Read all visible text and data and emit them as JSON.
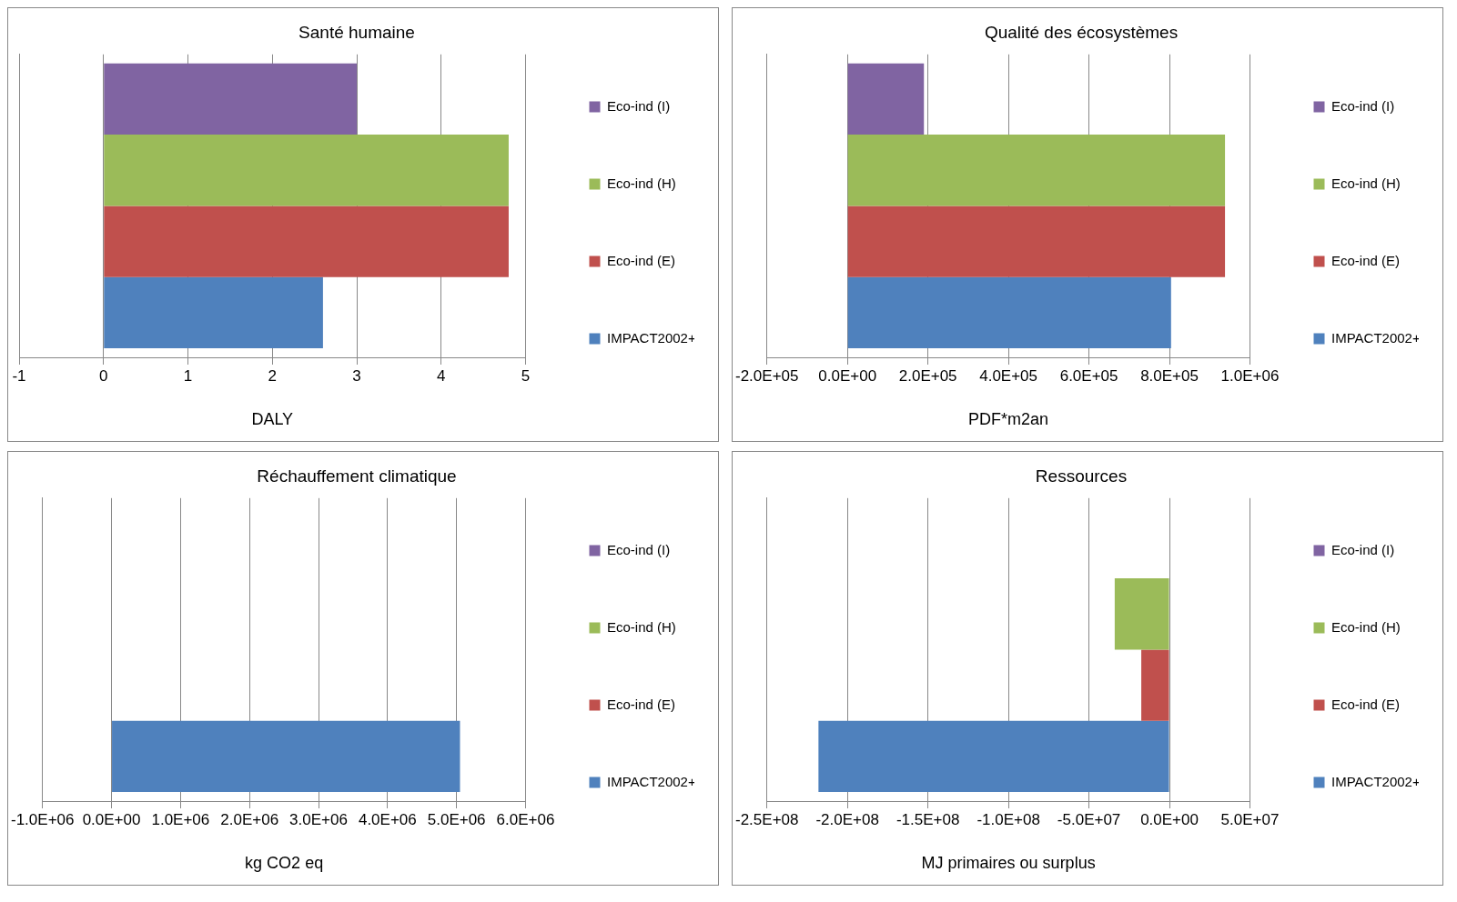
{
  "chart_data": [
    {
      "type": "bar",
      "orientation": "horizontal",
      "title": "Santé humaine",
      "xlabel": "DALY",
      "categories": [
        null
      ],
      "xlim": [
        -1,
        5
      ],
      "xticks": [
        -1,
        0,
        1,
        2,
        3,
        4,
        5
      ],
      "grid": "x",
      "legend": "right",
      "tick_labels": "x",
      "series": [
        {
          "name": "Eco-ind (I)",
          "color": "#8064a2",
          "values": [
            3.0
          ]
        },
        {
          "name": "Eco-ind (H)",
          "color": "#9bbb59",
          "values": [
            4.8
          ]
        },
        {
          "name": "Eco-ind (E)",
          "color": "#c0504d",
          "values": [
            4.8
          ]
        },
        {
          "name": "IMPACT2002+",
          "color": "#4f81bd",
          "values": [
            2.6
          ]
        }
      ]
    },
    {
      "type": "bar",
      "orientation": "horizontal",
      "title": "Qualité des écosystèmes",
      "xlabel": "PDF*m2an",
      "categories": [
        null
      ],
      "xlim": [
        -200000,
        1000000
      ],
      "xticks": [
        {
          "value": -200000,
          "label": "-2.0E+05"
        },
        {
          "value": 0,
          "label": "0.0E+00"
        },
        {
          "value": 200000,
          "label": "2.0E+05"
        },
        {
          "value": 400000,
          "label": "4.0E+05"
        },
        {
          "value": 600000,
          "label": "6.0E+05"
        },
        {
          "value": 800000,
          "label": "8.0E+05"
        },
        {
          "value": 1000000,
          "label": "1.0E+06"
        }
      ],
      "grid": "x",
      "legend": "right",
      "tick_labels": "x",
      "series": [
        {
          "name": "Eco-ind (I)",
          "color": "#8064a2",
          "values": [
            190000
          ]
        },
        {
          "name": "Eco-ind (H)",
          "color": "#9bbb59",
          "values": [
            938000
          ]
        },
        {
          "name": "Eco-ind (E)",
          "color": "#c0504d",
          "values": [
            938000
          ]
        },
        {
          "name": "IMPACT2002+",
          "color": "#4f81bd",
          "values": [
            804000
          ]
        }
      ]
    },
    {
      "type": "bar",
      "orientation": "horizontal",
      "title": "Réchauffement climatique",
      "xlabel": "kg CO2 eq",
      "categories": [
        null
      ],
      "xlim": [
        -1000000,
        6000000
      ],
      "xticks": [
        {
          "value": -1000000,
          "label": "-1.0E+06"
        },
        {
          "value": 0,
          "label": "0.0E+00"
        },
        {
          "value": 1000000,
          "label": "1.0E+06"
        },
        {
          "value": 2000000,
          "label": "2.0E+06"
        },
        {
          "value": 3000000,
          "label": "3.0E+06"
        },
        {
          "value": 4000000,
          "label": "4.0E+06"
        },
        {
          "value": 5000000,
          "label": "5.0E+06"
        },
        {
          "value": 6000000,
          "label": "6.0E+06"
        }
      ],
      "grid": "x",
      "legend": "right",
      "tick_labels": "x",
      "series": [
        {
          "name": "Eco-ind (I)",
          "color": "#8064a2",
          "values": [
            0
          ]
        },
        {
          "name": "Eco-ind (H)",
          "color": "#9bbb59",
          "values": [
            0
          ]
        },
        {
          "name": "Eco-ind (E)",
          "color": "#c0504d",
          "values": [
            0
          ]
        },
        {
          "name": "IMPACT2002+",
          "color": "#4f81bd",
          "values": [
            5050000
          ]
        }
      ]
    },
    {
      "type": "bar",
      "orientation": "horizontal",
      "title": "Ressources",
      "xlabel": "MJ primaires ou surplus",
      "categories": [
        null
      ],
      "xlim": [
        -250000000,
        50000000
      ],
      "xticks": [
        {
          "value": -250000000,
          "label": "-2.5E+08"
        },
        {
          "value": -200000000,
          "label": "-2.0E+08"
        },
        {
          "value": -150000000,
          "label": "-1.5E+08"
        },
        {
          "value": -100000000,
          "label": "-1.0E+08"
        },
        {
          "value": -50000000,
          "label": "-5.0E+07"
        },
        {
          "value": 0,
          "label": "0.0E+00"
        },
        {
          "value": 50000000,
          "label": "5.0E+07"
        }
      ],
      "grid": "x",
      "legend": "right",
      "tick_labels": "x",
      "series": [
        {
          "name": "Eco-ind (I)",
          "color": "#8064a2",
          "values": [
            0
          ]
        },
        {
          "name": "Eco-ind (H)",
          "color": "#9bbb59",
          "values": [
            -34000000
          ]
        },
        {
          "name": "Eco-ind (E)",
          "color": "#c0504d",
          "values": [
            -17500000
          ]
        },
        {
          "name": "IMPACT2002+",
          "color": "#4f81bd",
          "values": [
            -218000000
          ]
        }
      ]
    }
  ]
}
